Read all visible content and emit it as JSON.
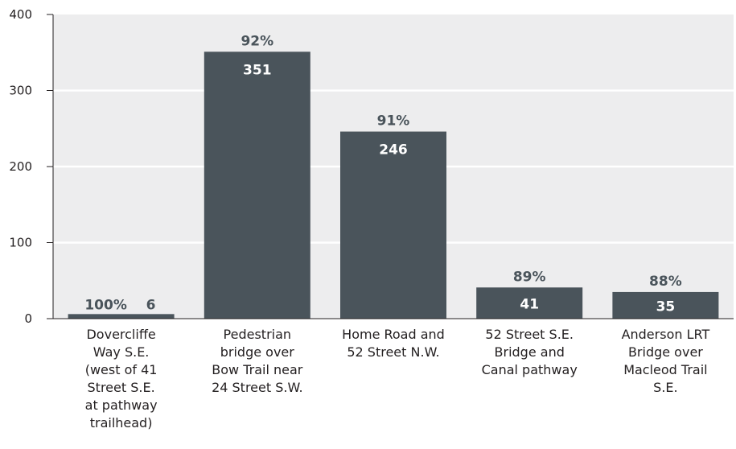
{
  "chart_data": {
    "type": "bar",
    "categories": [
      [
        "Dovercliffe",
        "Way S.E.",
        "(west of 41",
        "Street S.E.",
        "at pathway",
        "trailhead)"
      ],
      [
        "Pedestrian",
        "bridge over",
        "Bow Trail near",
        "24 Street S.W."
      ],
      [
        "Home Road and",
        "52 Street N.W."
      ],
      [
        "52 Street S.E.",
        "Bridge and",
        "Canal pathway"
      ],
      [
        "Anderson LRT",
        "Bridge over",
        "Macleod Trail",
        "S.E."
      ]
    ],
    "values": [
      6,
      351,
      246,
      41,
      35
    ],
    "value_labels": [
      "6",
      "351",
      "246",
      "41",
      "35"
    ],
    "percent_labels": [
      "100%",
      "92%",
      "91%",
      "89%",
      "88%"
    ],
    "ylim": [
      0,
      400
    ],
    "yticks": [
      0,
      100,
      200,
      300,
      400
    ],
    "ytick_labels": [
      "0",
      "100",
      "200",
      "300",
      "400"
    ],
    "grid": true,
    "title": "",
    "xlabel": "",
    "ylabel": "",
    "colors": {
      "bar": "#4a545b",
      "plot_background": "#ededee",
      "grid": "#ffffff",
      "axis": "#231f20"
    }
  }
}
